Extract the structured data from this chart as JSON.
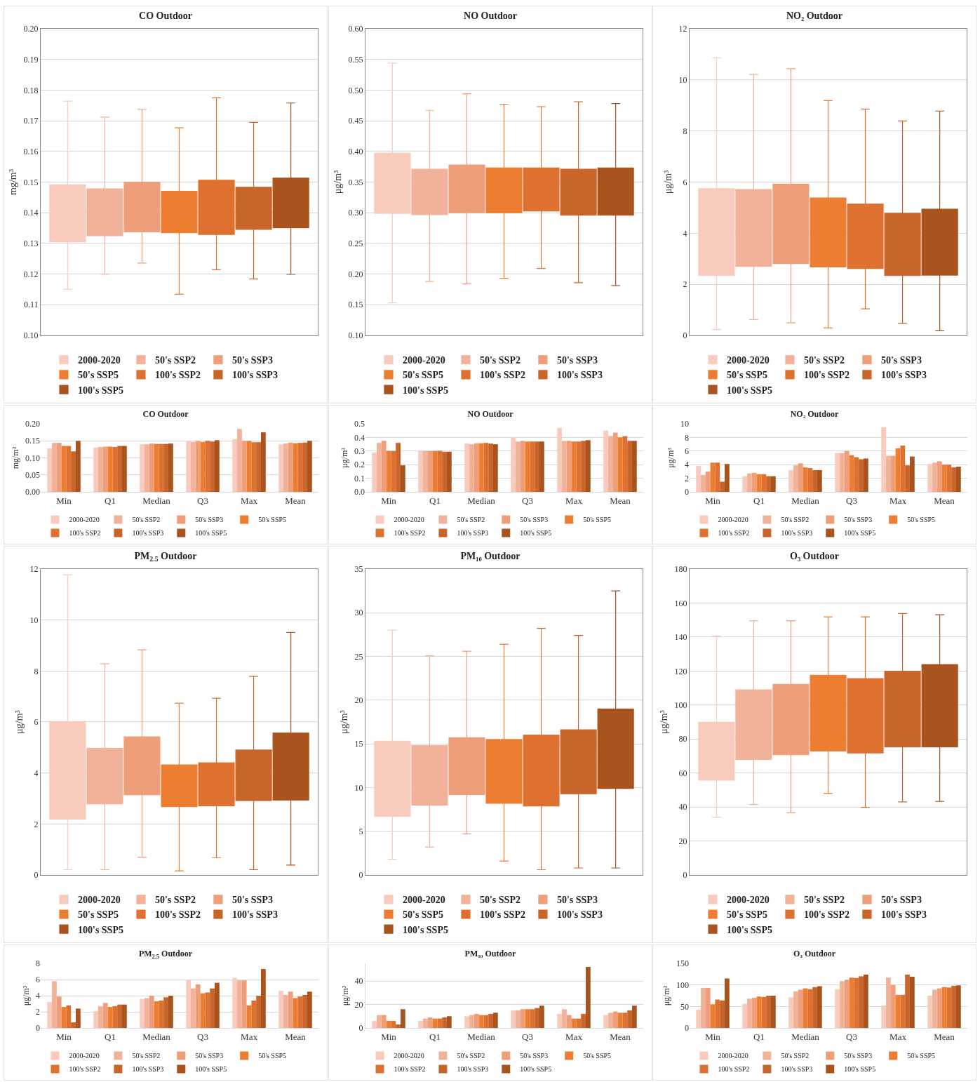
{
  "chart_data": [
    {
      "type": "box",
      "title": "CO Outdoor",
      "ylabel": "mg/m³",
      "categories": [
        null
      ],
      "ylim": [
        0.1,
        0.2
      ],
      "yticks": [
        {
          "value": 0.1,
          "label": "0.10"
        },
        0.11,
        0.12,
        0.13,
        0.14,
        0.15,
        0.16,
        0.17,
        0.18,
        0.19,
        {
          "value": 0.2,
          "label": "0.20"
        }
      ],
      "grid": "y",
      "legend": "bottom",
      "tick_labels": "y",
      "series": [
        {
          "name": "2000-2020",
          "color": "#f8cbbd",
          "boxes": [
            {
              "low": 0.115,
              "q1": 0.1305,
              "median": 0.1407,
              "q3": 0.1491,
              "high": 0.1764
            }
          ]
        },
        {
          "name": "50's SSP2",
          "color": "#f2b29a",
          "boxes": [
            {
              "low": 0.12,
              "q1": 0.1325,
              "median": 0.1411,
              "q3": 0.1478,
              "high": 0.1712
            }
          ]
        },
        {
          "name": "50's SSP3",
          "color": "#ee9e78",
          "boxes": [
            {
              "low": 0.1236,
              "q1": 0.1338,
              "median": 0.1431,
              "q3": 0.15,
              "high": 0.1738
            }
          ]
        },
        {
          "name": "50's SSP5",
          "color": "#ed7d31",
          "boxes": [
            {
              "low": 0.1134,
              "q1": 0.1335,
              "median": 0.1418,
              "q3": 0.147,
              "high": 0.1677
            }
          ]
        },
        {
          "name": "100's SSP2",
          "color": "#de7030",
          "boxes": [
            {
              "low": 0.1214,
              "q1": 0.1329,
              "median": 0.1418,
              "q3": 0.1506,
              "high": 0.1775
            }
          ]
        },
        {
          "name": "100's SSP3",
          "color": "#c8652b",
          "boxes": [
            {
              "low": 0.1184,
              "q1": 0.1346,
              "median": 0.1418,
              "q3": 0.1483,
              "high": 0.1695
            }
          ]
        },
        {
          "name": "100's SSP5",
          "color": "#a9531f",
          "boxes": [
            {
              "low": 0.1199,
              "q1": 0.1351,
              "median": 0.1433,
              "q3": 0.1513,
              "high": 0.1758
            }
          ]
        }
      ]
    },
    {
      "type": "box",
      "title": "NO Outdoor",
      "ylabel": "μg/m³",
      "categories": [
        null
      ],
      "ylim": [
        0.1,
        0.6
      ],
      "yticks": [
        {
          "value": 0.1,
          "label": "0.10"
        },
        0.15,
        {
          "value": 0.2,
          "label": "0.20"
        },
        0.25,
        {
          "value": 0.3,
          "label": "0.30"
        },
        0.35,
        {
          "value": 0.4,
          "label": "0.40"
        },
        0.45,
        {
          "value": 0.5,
          "label": "0.50"
        },
        0.55,
        {
          "value": 0.6,
          "label": "0.60"
        }
      ],
      "grid": "y",
      "legend": "bottom",
      "tick_labels": "y",
      "series": [
        {
          "name": "2000-2020",
          "color": "#f8cbbd",
          "boxes": [
            {
              "low": 0.153,
              "q1": 0.299,
              "median": 0.354,
              "q3": 0.397,
              "high": 0.544
            }
          ]
        },
        {
          "name": "50's SSP2",
          "color": "#f2b29a",
          "boxes": [
            {
              "low": 0.188,
              "q1": 0.297,
              "median": 0.349,
              "q3": 0.371,
              "high": 0.467
            }
          ]
        },
        {
          "name": "50's SSP3",
          "color": "#ee9e78",
          "boxes": [
            {
              "low": 0.184,
              "q1": 0.3,
              "median": 0.359,
              "q3": 0.378,
              "high": 0.494
            }
          ]
        },
        {
          "name": "50's SSP5",
          "color": "#ed7d31",
          "boxes": [
            {
              "low": 0.193,
              "q1": 0.3,
              "median": 0.359,
              "q3": 0.373,
              "high": 0.477
            }
          ]
        },
        {
          "name": "100's SSP2",
          "color": "#de7030",
          "boxes": [
            {
              "low": 0.209,
              "q1": 0.303,
              "median": 0.36,
              "q3": 0.373,
              "high": 0.473
            }
          ]
        },
        {
          "name": "100's SSP3",
          "color": "#c8652b",
          "boxes": [
            {
              "low": 0.186,
              "q1": 0.296,
              "median": 0.356,
              "q3": 0.371,
              "high": 0.481
            }
          ]
        },
        {
          "name": "100's SSP5",
          "color": "#a9531f",
          "boxes": [
            {
              "low": 0.181,
              "q1": 0.296,
              "median": 0.353,
              "q3": 0.373,
              "high": 0.478
            }
          ]
        }
      ]
    },
    {
      "type": "box",
      "title": "NO₂ Outdoor",
      "ylabel": "μg/m³",
      "categories": [
        null
      ],
      "ylim": [
        0,
        12
      ],
      "yticks": [
        0,
        2,
        4,
        6,
        8,
        10,
        12
      ],
      "grid": "y",
      "legend": "bottom",
      "tick_labels": "y",
      "series": [
        {
          "name": "2000-2020",
          "color": "#f8cbbd",
          "boxes": [
            {
              "low": 0.23,
              "q1": 2.34,
              "median": 3.19,
              "q3": 5.74,
              "high": 10.86
            }
          ]
        },
        {
          "name": "50's SSP2",
          "color": "#f2b29a",
          "boxes": [
            {
              "low": 0.62,
              "q1": 2.7,
              "median": 3.92,
              "q3": 5.71,
              "high": 10.21
            }
          ]
        },
        {
          "name": "50's SSP3",
          "color": "#ee9e78",
          "boxes": [
            {
              "low": 0.49,
              "q1": 2.81,
              "median": 4.21,
              "q3": 5.92,
              "high": 10.44
            }
          ]
        },
        {
          "name": "50's SSP5",
          "color": "#ed7d31",
          "boxes": [
            {
              "low": 0.29,
              "q1": 2.68,
              "median": 3.64,
              "q3": 5.38,
              "high": 9.19
            }
          ]
        },
        {
          "name": "100's SSP2",
          "color": "#de7030",
          "boxes": [
            {
              "low": 1.04,
              "q1": 2.62,
              "median": 3.56,
              "q3": 5.14,
              "high": 8.86
            }
          ]
        },
        {
          "name": "100's SSP3",
          "color": "#c8652b",
          "boxes": [
            {
              "low": 0.47,
              "q1": 2.34,
              "median": 3.19,
              "q3": 4.78,
              "high": 8.39
            }
          ]
        },
        {
          "name": "100's SSP5",
          "color": "#a9531f",
          "boxes": [
            {
              "low": 0.18,
              "q1": 2.36,
              "median": 3.27,
              "q3": 4.94,
              "high": 8.78
            }
          ]
        }
      ]
    },
    {
      "type": "bar",
      "title": "CO Outdoor",
      "ylabel": "mg/m³",
      "categories": [
        "Min",
        "Q1",
        "Median",
        "Q3",
        "Max",
        "Mean"
      ],
      "ylim": [
        0,
        0.2
      ],
      "yticks": [
        {
          "value": 0,
          "label": "0.00"
        },
        0.05,
        {
          "value": 0.1,
          "label": "0.10"
        },
        0.15,
        {
          "value": 0.2,
          "label": "0.20"
        }
      ],
      "grid": "y",
      "legend": "bottom",
      "series": [
        {
          "name": "2000-2020",
          "color": "#f8cbbd",
          "values": [
            0.128,
            0.13,
            0.14,
            0.15,
            0.155,
            0.14
          ]
        },
        {
          "name": "50's SSP2",
          "color": "#f2b29a",
          "values": [
            0.144,
            0.132,
            0.14,
            0.147,
            0.185,
            0.142
          ]
        },
        {
          "name": "50's SSP3",
          "color": "#ee9e78",
          "values": [
            0.144,
            0.133,
            0.142,
            0.15,
            0.15,
            0.145
          ]
        },
        {
          "name": "50's SSP5",
          "color": "#ed7d31",
          "values": [
            0.135,
            0.133,
            0.141,
            0.147,
            0.15,
            0.143
          ]
        },
        {
          "name": "100's SSP2",
          "color": "#de7030",
          "values": [
            0.135,
            0.132,
            0.141,
            0.15,
            0.146,
            0.144
          ]
        },
        {
          "name": "100's SSP3",
          "color": "#c8652b",
          "values": [
            0.119,
            0.135,
            0.141,
            0.148,
            0.146,
            0.145
          ]
        },
        {
          "name": "100's SSP5",
          "color": "#a9531f",
          "values": [
            0.15,
            0.135,
            0.142,
            0.152,
            0.175,
            0.15
          ]
        }
      ]
    },
    {
      "type": "bar",
      "title": "NO Outdoor",
      "ylabel": "μg/m³",
      "categories": [
        "Min",
        "Q1",
        "Median",
        "Q3",
        "Max",
        "Mean"
      ],
      "ylim": [
        0,
        0.5
      ],
      "yticks": [
        {
          "value": 0,
          "label": "0.0"
        },
        0.1,
        0.2,
        0.3,
        0.4,
        0.5
      ],
      "grid": "y",
      "legend": "bottom",
      "series": [
        {
          "name": "2000-2020",
          "color": "#f8cbbd",
          "values": [
            0.29,
            0.3,
            0.355,
            0.4,
            0.47,
            0.45
          ]
        },
        {
          "name": "50's SSP2",
          "color": "#f2b29a",
          "values": [
            0.36,
            0.3,
            0.35,
            0.37,
            0.375,
            0.41
          ]
        },
        {
          "name": "50's SSP3",
          "color": "#ee9e78",
          "values": [
            0.375,
            0.3,
            0.357,
            0.375,
            0.375,
            0.435
          ]
        },
        {
          "name": "50's SSP5",
          "color": "#ed7d31",
          "values": [
            0.3,
            0.3,
            0.357,
            0.37,
            0.37,
            0.4
          ]
        },
        {
          "name": "100's SSP2",
          "color": "#de7030",
          "values": [
            0.3,
            0.302,
            0.36,
            0.37,
            0.37,
            0.41
          ]
        },
        {
          "name": "100's SSP3",
          "color": "#c8652b",
          "values": [
            0.36,
            0.295,
            0.355,
            0.37,
            0.375,
            0.375
          ]
        },
        {
          "name": "100's SSP5",
          "color": "#a9531f",
          "values": [
            0.195,
            0.295,
            0.35,
            0.37,
            0.38,
            0.375
          ]
        }
      ]
    },
    {
      "type": "bar",
      "title": "NO₂ Outdoor",
      "ylabel": "μg/m³",
      "categories": [
        "Min",
        "Q1",
        "Median",
        "Q3",
        "Max",
        "Mean"
      ],
      "ylim": [
        0,
        10
      ],
      "yticks": [
        0,
        2,
        4,
        6,
        8,
        10
      ],
      "grid": "y",
      "legend": "bottom",
      "series": [
        {
          "name": "2000-2020",
          "color": "#f8cbbd",
          "values": [
            3.8,
            2.3,
            3.2,
            5.7,
            9.5,
            4.1
          ]
        },
        {
          "name": "50's SSP2",
          "color": "#f2b29a",
          "values": [
            2.5,
            2.7,
            3.9,
            5.7,
            5.3,
            4.3
          ]
        },
        {
          "name": "50's SSP3",
          "color": "#ee9e78",
          "values": [
            3.0,
            2.8,
            4.2,
            6.0,
            5.3,
            4.5
          ]
        },
        {
          "name": "50's SSP5",
          "color": "#ed7d31",
          "values": [
            4.3,
            2.6,
            3.6,
            5.4,
            6.4,
            4.0
          ]
        },
        {
          "name": "100's SSP2",
          "color": "#de7030",
          "values": [
            4.3,
            2.6,
            3.5,
            5.1,
            6.8,
            4.0
          ]
        },
        {
          "name": "100's SSP3",
          "color": "#c8652b",
          "values": [
            1.5,
            2.3,
            3.2,
            4.8,
            3.9,
            3.6
          ]
        },
        {
          "name": "100's SSP5",
          "color": "#a9531f",
          "values": [
            4.1,
            2.3,
            3.2,
            4.9,
            5.2,
            3.7
          ]
        }
      ]
    },
    {
      "type": "box",
      "title": "PM$_{2.5}$ Outdoor",
      "ylabel": "μg/m³",
      "categories": [
        null
      ],
      "ylim": [
        0,
        12
      ],
      "yticks": [
        0,
        2,
        4,
        6,
        8,
        10,
        12
      ],
      "grid": "y",
      "legend": "bottom",
      "tick_labels": "y",
      "series": [
        {
          "name": "2000-2020",
          "color": "#f8cbbd",
          "boxes": [
            {
              "low": 0.21,
              "q1": 2.19,
              "median": 3.62,
              "q3": 6.02,
              "high": 11.77
            }
          ]
        },
        {
          "name": "50's SSP2",
          "color": "#f2b29a",
          "boxes": [
            {
              "low": 0.21,
              "q1": 2.79,
              "median": 3.72,
              "q3": 4.97,
              "high": 8.28
            }
          ]
        },
        {
          "name": "50's SSP3",
          "color": "#ee9e78",
          "boxes": [
            {
              "low": 0.7,
              "q1": 3.15,
              "median": 4.01,
              "q3": 5.42,
              "high": 8.83
            }
          ]
        },
        {
          "name": "50's SSP5",
          "color": "#ed7d31",
          "boxes": [
            {
              "low": 0.16,
              "q1": 2.68,
              "median": 3.33,
              "q3": 4.32,
              "high": 6.74
            }
          ]
        },
        {
          "name": "100's SSP2",
          "color": "#de7030",
          "boxes": [
            {
              "low": 0.68,
              "q1": 2.71,
              "median": 3.39,
              "q3": 4.4,
              "high": 6.93
            }
          ]
        },
        {
          "name": "100's SSP3",
          "color": "#c8652b",
          "boxes": [
            {
              "low": 0.21,
              "q1": 2.92,
              "median": 3.75,
              "q3": 4.9,
              "high": 7.79
            }
          ]
        },
        {
          "name": "100's SSP5",
          "color": "#a9531f",
          "boxes": [
            {
              "low": 0.39,
              "q1": 2.94,
              "median": 4.04,
              "q3": 5.57,
              "high": 9.51
            }
          ]
        }
      ]
    },
    {
      "type": "box",
      "title": "PM₁₀ Outdoor",
      "ylabel": "μg/m³",
      "categories": [
        null
      ],
      "ylim": [
        0,
        35
      ],
      "yticks": [
        0,
        5,
        10,
        15,
        20,
        25,
        30,
        35
      ],
      "grid": "y",
      "legend": "bottom",
      "tick_labels": "y",
      "series": [
        {
          "name": "2000-2020",
          "color": "#f8cbbd",
          "boxes": [
            {
              "low": 1.8,
              "q1": 6.7,
              "median": 10.4,
              "q3": 15.3,
              "high": 28.0
            }
          ]
        },
        {
          "name": "50's SSP2",
          "color": "#f2b29a",
          "boxes": [
            {
              "low": 3.2,
              "q1": 8.0,
              "median": 11.2,
              "q3": 14.8,
              "high": 25.1
            }
          ]
        },
        {
          "name": "50's SSP3",
          "color": "#ee9e78",
          "boxes": [
            {
              "low": 4.7,
              "q1": 9.2,
              "median": 12.1,
              "q3": 15.7,
              "high": 25.6
            }
          ]
        },
        {
          "name": "50's SSP5",
          "color": "#ed7d31",
          "boxes": [
            {
              "low": 1.6,
              "q1": 8.2,
              "median": 11.0,
              "q3": 15.5,
              "high": 26.4
            }
          ]
        },
        {
          "name": "100's SSP2",
          "color": "#de7030",
          "boxes": [
            {
              "low": 0.6,
              "q1": 7.9,
              "median": 11.1,
              "q3": 16.0,
              "high": 28.2
            }
          ]
        },
        {
          "name": "100's SSP3",
          "color": "#c8652b",
          "boxes": [
            {
              "low": 0.8,
              "q1": 9.3,
              "median": 12.3,
              "q3": 16.6,
              "high": 27.4
            }
          ]
        },
        {
          "name": "100's SSP5",
          "color": "#a9531f",
          "boxes": [
            {
              "low": 0.8,
              "q1": 9.9,
              "median": 13.4,
              "q3": 19.0,
              "high": 32.5
            }
          ]
        }
      ]
    },
    {
      "type": "box",
      "title": "O₃ Outdoor",
      "ylabel": "μg/m³",
      "categories": [
        null
      ],
      "ylim": [
        0,
        180
      ],
      "yticks": [
        0,
        20,
        40,
        60,
        80,
        100,
        120,
        140,
        160,
        180
      ],
      "grid": "y",
      "legend": "bottom",
      "tick_labels": "y",
      "series": [
        {
          "name": "2000-2020",
          "color": "#f8cbbd",
          "boxes": [
            {
              "low": 34,
              "q1": 55.8,
              "median": 71.1,
              "q3": 89.8,
              "high": 140.6
            }
          ]
        },
        {
          "name": "50's SSP2",
          "color": "#f2b29a",
          "boxes": [
            {
              "low": 41.4,
              "q1": 67.9,
              "median": 85.1,
              "q3": 108.9,
              "high": 149.6
            }
          ]
        },
        {
          "name": "50's SSP3",
          "color": "#ee9e78",
          "boxes": [
            {
              "low": 36.7,
              "q1": 70.7,
              "median": 89.0,
              "q3": 112.1,
              "high": 149.6
            }
          ]
        },
        {
          "name": "50's SSP5",
          "color": "#ed7d31",
          "boxes": [
            {
              "low": 48.0,
              "q1": 73.0,
              "median": 91.8,
              "q3": 117.5,
              "high": 151.9
            }
          ]
        },
        {
          "name": "100's SSP2",
          "color": "#de7030",
          "boxes": [
            {
              "low": 39.8,
              "q1": 71.8,
              "median": 90.2,
              "q3": 115.6,
              "high": 151.9
            }
          ]
        },
        {
          "name": "100's SSP3",
          "color": "#c8652b",
          "boxes": [
            {
              "low": 43.0,
              "q1": 75.4,
              "median": 94.1,
              "q3": 119.9,
              "high": 153.8
            }
          ]
        },
        {
          "name": "100's SSP5",
          "color": "#a9531f",
          "boxes": [
            {
              "low": 43.3,
              "q1": 75.4,
              "median": 96.4,
              "q3": 123.8,
              "high": 153.1
            }
          ]
        }
      ]
    },
    {
      "type": "bar",
      "title": "PM$_{2.5}$ Outdoor",
      "ylabel": "μg/m³",
      "categories": [
        "Min",
        "Q1",
        "Median",
        "Q3",
        "Max",
        "Mean"
      ],
      "ylim": [
        0,
        8
      ],
      "yticks": [
        0,
        2,
        4,
        6,
        8
      ],
      "grid": "y",
      "legend": "bottom",
      "series": [
        {
          "name": "2000-2020",
          "color": "#f8cbbd",
          "values": [
            3.2,
            2.1,
            3.6,
            6.0,
            6.2,
            4.6
          ]
        },
        {
          "name": "50's SSP2",
          "color": "#f2b29a",
          "values": [
            5.8,
            2.7,
            3.7,
            4.9,
            5.9,
            4.1
          ]
        },
        {
          "name": "50's SSP3",
          "color": "#ee9e78",
          "values": [
            3.9,
            3.1,
            4.0,
            5.4,
            5.9,
            4.5
          ]
        },
        {
          "name": "50's SSP5",
          "color": "#ed7d31",
          "values": [
            2.6,
            2.6,
            3.3,
            4.3,
            2.8,
            3.7
          ]
        },
        {
          "name": "100's SSP2",
          "color": "#de7030",
          "values": [
            2.8,
            2.7,
            3.4,
            4.4,
            3.4,
            3.9
          ]
        },
        {
          "name": "100's SSP3",
          "color": "#c8652b",
          "values": [
            0.7,
            2.9,
            3.8,
            4.9,
            4.0,
            4.1
          ]
        },
        {
          "name": "100's SSP5",
          "color": "#a9531f",
          "values": [
            2.4,
            2.9,
            4.0,
            5.6,
            7.3,
            4.5
          ]
        }
      ]
    },
    {
      "type": "bar",
      "title": "PM₁₀ Outdoor",
      "ylabel": "μg/m³",
      "categories": [
        "Min",
        "Q1",
        "Median",
        "Q3",
        "Max",
        "Mean"
      ],
      "ylim": [
        0,
        55
      ],
      "yticks": [
        0,
        20,
        40
      ],
      "grid": "y",
      "legend": "bottom",
      "series": [
        {
          "name": "2000-2020",
          "color": "#f8cbbd",
          "values": [
            6,
            6,
            10,
            15,
            12,
            11
          ]
        },
        {
          "name": "50's SSP2",
          "color": "#f2b29a",
          "values": [
            11,
            8,
            11,
            15,
            16,
            13
          ]
        },
        {
          "name": "50's SSP3",
          "color": "#ee9e78",
          "values": [
            11,
            9,
            12,
            16,
            11,
            14
          ]
        },
        {
          "name": "50's SSP5",
          "color": "#ed7d31",
          "values": [
            6,
            8,
            11,
            16,
            8,
            13
          ]
        },
        {
          "name": "100's SSP2",
          "color": "#de7030",
          "values": [
            6,
            8,
            11,
            16,
            8,
            13
          ]
        },
        {
          "name": "100's SSP3",
          "color": "#c8652b",
          "values": [
            3,
            9,
            12,
            17,
            12,
            15
          ]
        },
        {
          "name": "100's SSP5",
          "color": "#a9531f",
          "values": [
            16,
            10,
            13,
            19,
            52,
            19
          ]
        }
      ]
    },
    {
      "type": "bar",
      "title": "O₃ Outdoor",
      "ylabel": "μg/m³",
      "categories": [
        "Min",
        "Q1",
        "Median",
        "Q3",
        "Max",
        "Mean"
      ],
      "ylim": [
        0,
        150
      ],
      "yticks": [
        0,
        50,
        100,
        150
      ],
      "grid": "y",
      "legend": "bottom",
      "series": [
        {
          "name": "2000-2020",
          "color": "#f8cbbd",
          "values": [
            43,
            56,
            71,
            90,
            52,
            75
          ]
        },
        {
          "name": "50's SSP2",
          "color": "#f2b29a",
          "values": [
            93,
            68,
            85,
            109,
            117,
            89
          ]
        },
        {
          "name": "50's SSP3",
          "color": "#ee9e78",
          "values": [
            93,
            70,
            89,
            112,
            100,
            92
          ]
        },
        {
          "name": "50's SSP5",
          "color": "#ed7d31",
          "values": [
            55,
            73,
            92,
            117,
            77,
            95
          ]
        },
        {
          "name": "100's SSP2",
          "color": "#de7030",
          "values": [
            66,
            72,
            90,
            116,
            77,
            94
          ]
        },
        {
          "name": "100's SSP3",
          "color": "#c8652b",
          "values": [
            64,
            75,
            95,
            120,
            124,
            98
          ]
        },
        {
          "name": "100's SSP5",
          "color": "#a9531f",
          "values": [
            115,
            75,
            97,
            124,
            119,
            99
          ]
        }
      ]
    }
  ]
}
